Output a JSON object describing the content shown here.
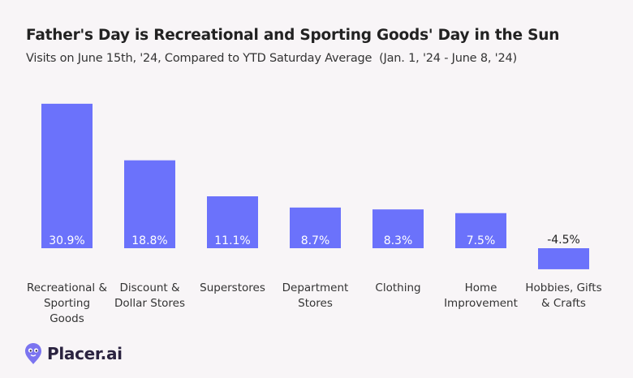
{
  "title": "Father's Day is Recreational and Sporting Goods' Day in the Sun",
  "subtitle": "Visits on June 15th, '24, Compared to YTD Saturday Average  (Jan. 1, '24 - June 8, '24)",
  "logo": {
    "text": "Placer.ai",
    "icon": "placer-pin-icon"
  },
  "colors": {
    "bar": "#6b72fb",
    "background": "#f8f5f7",
    "label_inside": "#ffffff",
    "label_outside": "#222222"
  },
  "chart_data": {
    "type": "bar",
    "title": "Father's Day is Recreational and Sporting Goods' Day in the Sun",
    "subtitle": "Visits on June 15th, '24, Compared to YTD Saturday Average  (Jan. 1, '24 - June 8, '24)",
    "categories": [
      [
        "Recreational &",
        "Sporting",
        "Goods"
      ],
      [
        "Discount &",
        "Dollar Stores"
      ],
      [
        "Superstores"
      ],
      [
        "Department",
        "Stores"
      ],
      [
        "Clothing"
      ],
      [
        "Home",
        "Improvement"
      ],
      [
        "Hobbies, Gifts",
        "& Crafts"
      ]
    ],
    "values": [
      30.9,
      18.8,
      11.1,
      8.7,
      8.3,
      7.5,
      -4.5
    ],
    "value_labels": [
      "30.9%",
      "18.8%",
      "11.1%",
      "8.7%",
      "8.3%",
      "7.5%",
      "-4.5%"
    ],
    "unit": "%",
    "xlabel": "",
    "ylabel": "",
    "grid": false,
    "legend": "none"
  }
}
